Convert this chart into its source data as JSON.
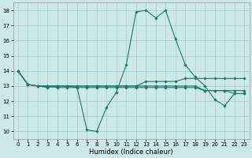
{
  "xlabel": "Humidex (Indice chaleur)",
  "bg_color": "#cce8e8",
  "line_color": "#1a7a6e",
  "grid_color": "#aacccc",
  "xlim": [
    -0.5,
    23.5
  ],
  "ylim": [
    9.5,
    18.5
  ],
  "xticks": [
    0,
    1,
    2,
    3,
    4,
    5,
    6,
    7,
    8,
    9,
    10,
    11,
    12,
    13,
    14,
    15,
    16,
    17,
    18,
    19,
    20,
    21,
    22,
    23
  ],
  "yticks": [
    10,
    11,
    12,
    13,
    14,
    15,
    16,
    17,
    18
  ],
  "series": [
    [
      14.0,
      13.1,
      13.0,
      12.9,
      13.0,
      13.0,
      12.9,
      10.1,
      10.0,
      11.6,
      12.6,
      14.4,
      17.9,
      18.0,
      17.5,
      18.0,
      16.1,
      14.4,
      13.6,
      13.0,
      12.1,
      11.7,
      12.5,
      12.5
    ],
    [
      14.0,
      13.1,
      13.0,
      13.0,
      13.0,
      13.0,
      13.0,
      13.0,
      13.0,
      13.0,
      13.0,
      13.0,
      13.0,
      13.3,
      13.3,
      13.3,
      13.3,
      13.5,
      13.5,
      13.5,
      13.5,
      13.5,
      13.5,
      13.5
    ],
    [
      14.0,
      13.1,
      13.0,
      13.0,
      13.0,
      13.0,
      13.0,
      13.0,
      13.0,
      13.0,
      13.0,
      13.0,
      13.0,
      13.0,
      13.0,
      13.0,
      13.0,
      13.0,
      13.0,
      12.7,
      12.7,
      12.7,
      12.7,
      12.7
    ],
    [
      14.0,
      13.1,
      13.0,
      13.0,
      12.9,
      12.9,
      12.9,
      12.9,
      12.9,
      12.9,
      12.9,
      12.9,
      12.9,
      12.9,
      12.9,
      12.9,
      12.9,
      12.9,
      12.9,
      12.7,
      12.7,
      12.7,
      12.5,
      12.5
    ]
  ]
}
